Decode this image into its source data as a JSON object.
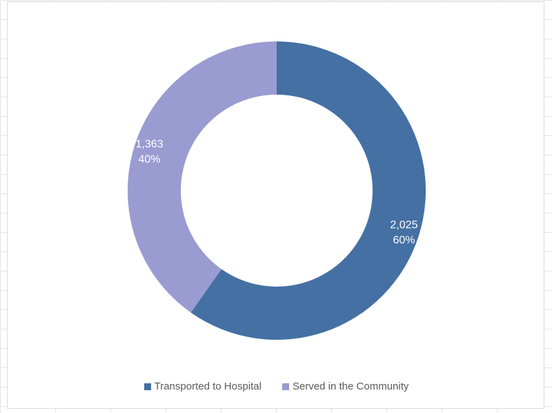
{
  "chart_data": {
    "type": "pie",
    "donut": true,
    "title": "",
    "legend_position": "bottom",
    "series": [
      {
        "name": "Transported to Hospital",
        "value": 2025,
        "value_label": "2,025",
        "percent_label": "60%",
        "color": "#4470a4"
      },
      {
        "name": "Served in the Community",
        "value": 1363,
        "value_label": "1,363",
        "percent_label": "40%",
        "color": "#9a9bd1"
      }
    ]
  }
}
